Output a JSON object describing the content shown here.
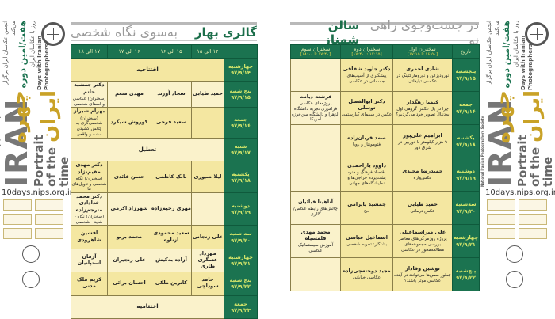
{
  "banner": {
    "organizer": "انجمن عکاسان ایران برگزار می‌کند",
    "edition": "هفت/امین دوره",
    "subtitle_fa": "روز با عکاسان ایران",
    "days_en": "Days with Iranian",
    "photographers_en": "Photographers",
    "gold_1": "چهره",
    "gold_2": "ایران",
    "iran": "IRAN",
    "portrait": "Portrait",
    "of_the_time": "of the time",
    "url": "10days.nips.org.ir",
    "society": "National Iranian Photographers Society"
  },
  "gallery": {
    "venue": "گالری بهار",
    "theme": "به‌سوی نگاه شخصی",
    "headers": [
      "",
      "۱۴ الی ۱۵",
      "۱۵ الی ۱۶",
      "۱۶ الی ۱۷",
      "۱۷ الی ۱۸"
    ],
    "rows": [
      {
        "day": "چهارشنبه",
        "date": "۹۷/۹/۱۴",
        "merged": "افتتاحیه"
      },
      {
        "day": "پنج شنبه",
        "date": "۹۷/۹/۱۵",
        "cells": [
          {
            "n": "حمید طیابی"
          },
          {
            "n": "سجاد آورند"
          },
          {
            "n": "مهدی منعم"
          },
          {
            "n": "دکتر جمشید حاتم",
            "s": "(سخنران) عکاسی و امضای شخصی"
          }
        ]
      },
      {
        "day": "جمعه",
        "date": "۹۷/۹/۱۶",
        "cells": [
          {
            "n": ""
          },
          {
            "n": "سعید فرجی"
          },
          {
            "n": "کوروش شیگرد"
          },
          {
            "n": "بهرام شیراز",
            "s": "(سخنران) شخصی‌گری به چالش کشیدن سنت و واقعی"
          }
        ]
      },
      {
        "day": "شنبه",
        "date": "۹۷/۹/۱۷",
        "merged": "تعطیل"
      },
      {
        "day": "یکشنبه",
        "date": "۹۷/۹/۱۸",
        "cells": [
          {
            "n": "لیلا صبوری"
          },
          {
            "n": "بابک کاظمی"
          },
          {
            "n": "حسن فائدی"
          },
          {
            "n": "دکتر مهدی مقیم‌نژاد",
            "s": "(سخنران) نگاه شخصی و تأویل‌های ما"
          }
        ]
      },
      {
        "day": "دوشنبه",
        "date": "۹۷/۹/۱۹",
        "cells": [
          {
            "n": ""
          },
          {
            "n": "مهری رحیم‌زاده"
          },
          {
            "n": "شهرزاد اکرمی"
          },
          {
            "n": "دکتر محمد خدادادی مترجم‌زاده",
            "s": "(سخنران) نگاه - شاید - شخصی"
          }
        ]
      },
      {
        "day": "سه شنبه",
        "date": "۹۷/۹/۲۰",
        "cells": [
          {
            "n": "علی زنجانی"
          },
          {
            "n": "سعید محمودی ازناوه"
          },
          {
            "n": "محمد برنو"
          },
          {
            "n": "افشین شاهرودی"
          }
        ]
      },
      {
        "day": "چهارشنبه",
        "date": "۹۷/۹/۲۱",
        "cells": [
          {
            "n": "مهرداد عسگری طاری"
          },
          {
            "n": "آزاده به‌کیش"
          },
          {
            "n": "علی زنجیران"
          },
          {
            "n": "آرمان استپانیان"
          }
        ]
      },
      {
        "day": "پنج شنبه",
        "date": "۹۷/۹/۲۲",
        "cells": [
          {
            "n": "حامد سوداچی"
          },
          {
            "n": "کاترین ملکی"
          },
          {
            "n": "احسان برائی"
          },
          {
            "n": "کریم ملک مدنی"
          }
        ]
      },
      {
        "day": "جمعه",
        "date": "۹۷/۹/۲۳",
        "merged": "اختتامیه"
      }
    ]
  },
  "hall": {
    "venue": "سالن شهناز",
    "theme": "در جست‌وجوی راهی نو",
    "headers": [
      {
        "label": "تاریخ",
        "time": ""
      },
      {
        "label": "سخنران اول",
        "time": "[۱۶:۵۰ تا ۱۷:۱۵]"
      },
      {
        "label": "سخنران دوم",
        "time": "[۱۷:۱۵ تا ۱۷:۴۰]"
      },
      {
        "label": "سخنران سوم",
        "time": "[۱۷:۴۰ تا ۱۸:۰۰]"
      }
    ],
    "rows": [
      {
        "day": "پنجشنبه",
        "date": "۹۷/۹/۱۵",
        "cells": [
          {
            "n": "شادی احمری",
            "s": "نوروديزاين و نورومارکتينگ در عکاسی تبليغاتی"
          },
          {
            "n": "دکتر جاوید شفاقی",
            "s": "پیشگیری از آسیب‌های جسمانی در عکاسی"
          },
          {
            "n": "",
            "s": ""
          }
        ]
      },
      {
        "day": "جمعه",
        "date": "۹۷/۹/۱۶",
        "cells": [
          {
            "n": "کیمیا رهگذار",
            "s": "چرا در یک عکس گروهی اول به‌دنبال تصویر خود می‌گردیم؟"
          },
          {
            "n": "دکتر ابوالفضل توسلی",
            "s": "عکس در سینمای کیارستمی"
          },
          {
            "n": "فرشته دیانت",
            "s": "پروژه‌های عکاسی فرامرزی تجربه دانشگاه الزهرا و دانشگاه سن‌خوزه آمریکا"
          }
        ]
      },
      {
        "day": "یکشنبه",
        "date": "۹۷/۹/۱۸",
        "cells": [
          {
            "n": "ابراهیم علی‌پور",
            "s": "۹ هزار کیلومتر با دوربین در شرق دور"
          },
          {
            "n": "صمد قربان‌زاده",
            "s": "فتومونتاژ و رویا"
          },
          {
            "n": "",
            "s": ""
          }
        ]
      },
      {
        "day": "دوشنبه",
        "date": "۹۷/۹/۱۹",
        "cells": [
          {
            "n": "حمیدرضا مجیدی",
            "s": "عکس‌واره"
          },
          {
            "n": "داوود یاراحمدی",
            "s": "اقتصاد فرهنگ و هنر- پشت‌پرده حراجی‌ها و نمایشگاه‌های جهانی"
          },
          {
            "n": "",
            "s": ""
          }
        ]
      },
      {
        "day": "سه‌شنبه",
        "date": "۹۷/۹/۲۰",
        "cells": [
          {
            "n": "حمید طیابی",
            "s": "عکس درمانی"
          },
          {
            "n": "جمشید پایرامی",
            "s": "حج"
          },
          {
            "n": "آناهیتا قبائیان",
            "s": "چالش‌های رابطه عکاس/گالری"
          }
        ]
      },
      {
        "day": "چهارشنبه",
        "date": "۹۷/۹/۲۱",
        "cells": [
          {
            "n": "علی میراسماعیلی",
            "s": "پروژه روزمرگی‌های معاصر بررسی مجموعه‌های مطالعه‌محور در عکاسی"
          },
          {
            "n": "اسماعیل عباسی",
            "s": "بشتکار: تجربه شخصی"
          },
          {
            "n": "محمد مهدی قلمسیاه",
            "s": "آموزش سیستماتیک عکاسی"
          }
        ]
      },
      {
        "day": "پنج‌شنبه",
        "date": "۹۷/۹/۲۲",
        "cells": [
          {
            "n": "نوشین وفادار",
            "s": "چطور سمن‌ها می‌توانند در آینده عکاسی موثر باشند؟"
          },
          {
            "n": "مجید دوخته‌چی‌زاده",
            "s": "عکاسی خیابانی"
          },
          {
            "n": "",
            "s": ""
          }
        ]
      }
    ]
  },
  "colors": {
    "green": "#1b7350",
    "gold": "#c9a227",
    "cell_dark": "#f4e7a1",
    "cell_light": "#faf2cb",
    "date_text": "#d9e86b"
  }
}
